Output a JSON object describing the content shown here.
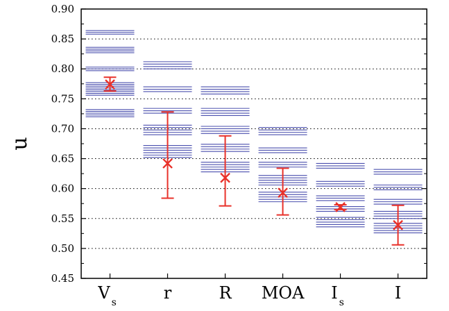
{
  "chart_data": {
    "type": "scatter",
    "title": "",
    "xlabel": "",
    "ylabel": "u",
    "ylim": [
      0.45,
      0.9
    ],
    "yticks": [
      "0.45",
      "0.50",
      "0.55",
      "0.60",
      "0.65",
      "0.70",
      "0.75",
      "0.80",
      "0.85",
      "0.90"
    ],
    "grid": "horizontal-dotted",
    "categories": [
      {
        "main": "V",
        "sub": "s"
      },
      {
        "main": "r",
        "sub": ""
      },
      {
        "main": "R",
        "sub": ""
      },
      {
        "main": "MOA",
        "sub": ""
      },
      {
        "main": "I",
        "sub": "s"
      },
      {
        "main": "I",
        "sub": ""
      }
    ],
    "line_color": "#4a4fae",
    "marker_color": "#e8312a",
    "values": [
      {
        "levels": [
          0.72,
          0.723,
          0.726,
          0.729,
          0.732,
          0.756,
          0.759,
          0.762,
          0.765,
          0.768,
          0.771,
          0.774,
          0.777,
          0.797,
          0.8,
          0.803,
          0.827,
          0.83,
          0.833,
          0.836,
          0.858,
          0.861,
          0.864
        ],
        "mean": 0.774,
        "err_low": 0.763,
        "err_high": 0.786
      },
      {
        "levels": [
          0.652,
          0.656,
          0.66,
          0.664,
          0.668,
          0.672,
          0.69,
          0.694,
          0.698,
          0.702,
          0.706,
          0.726,
          0.73,
          0.734,
          0.762,
          0.766,
          0.77,
          0.8,
          0.804,
          0.808,
          0.812
        ],
        "mean": 0.642,
        "err_low": 0.584,
        "err_high": 0.728
      },
      {
        "levels": [
          0.628,
          0.632,
          0.636,
          0.64,
          0.644,
          0.662,
          0.666,
          0.67,
          0.674,
          0.692,
          0.696,
          0.7,
          0.704,
          0.722,
          0.726,
          0.73,
          0.734,
          0.758,
          0.762,
          0.766,
          0.77
        ],
        "mean": 0.618,
        "err_low": 0.571,
        "err_high": 0.688
      },
      {
        "levels": [
          0.578,
          0.582,
          0.586,
          0.59,
          0.594,
          0.606,
          0.61,
          0.614,
          0.618,
          0.622,
          0.636,
          0.64,
          0.644,
          0.66,
          0.664,
          0.668,
          0.69,
          0.694,
          0.698,
          0.702
        ],
        "mean": 0.593,
        "err_low": 0.556,
        "err_high": 0.634
      },
      {
        "levels": [
          0.536,
          0.54,
          0.544,
          0.548,
          0.552,
          0.562,
          0.566,
          0.57,
          0.58,
          0.584,
          0.588,
          0.604,
          0.608,
          0.612,
          0.634,
          0.638,
          0.642
        ],
        "mean": 0.569,
        "err_low": 0.565,
        "err_high": 0.573
      },
      {
        "levels": [
          0.526,
          0.53,
          0.534,
          0.538,
          0.542,
          0.55,
          0.554,
          0.558,
          0.562,
          0.574,
          0.578,
          0.582,
          0.598,
          0.602,
          0.606,
          0.624,
          0.628,
          0.632
        ],
        "mean": 0.539,
        "err_low": 0.506,
        "err_high": 0.572
      }
    ]
  }
}
